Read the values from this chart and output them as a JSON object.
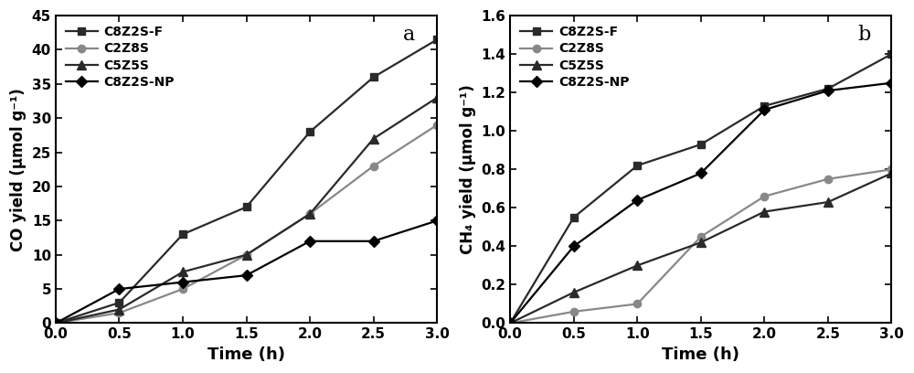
{
  "time": [
    0.0,
    0.5,
    1.0,
    1.5,
    2.0,
    2.5,
    3.0
  ],
  "plot_a": {
    "title": "a",
    "ylabel": "CO yield (μmol g⁻¹)",
    "xlabel": "Time (h)",
    "xlim": [
      0.0,
      3.0
    ],
    "ylim": [
      0,
      45
    ],
    "yticks": [
      0,
      5,
      10,
      15,
      20,
      25,
      30,
      35,
      40,
      45
    ],
    "xticks": [
      0.0,
      0.5,
      1.0,
      1.5,
      2.0,
      2.5,
      3.0
    ],
    "series": {
      "C8Z2S-F": [
        0,
        3.0,
        13.0,
        17.0,
        28.0,
        36.0,
        41.5
      ],
      "C2Z8S": [
        0,
        1.5,
        5.0,
        10.0,
        16.0,
        23.0,
        29.0
      ],
      "C5Z5S": [
        0,
        2.0,
        7.5,
        10.0,
        16.0,
        27.0,
        33.0
      ],
      "C8Z2S-NP": [
        0,
        5.0,
        6.0,
        7.0,
        12.0,
        12.0,
        15.0
      ]
    }
  },
  "plot_b": {
    "title": "b",
    "ylabel": "CH₄ yield (μmol g⁻¹)",
    "xlabel": "Time (h)",
    "xlim": [
      0.0,
      3.0
    ],
    "ylim": [
      0.0,
      1.6
    ],
    "yticks": [
      0.0,
      0.2,
      0.4,
      0.6,
      0.8,
      1.0,
      1.2,
      1.4,
      1.6
    ],
    "xticks": [
      0.0,
      0.5,
      1.0,
      1.5,
      2.0,
      2.5,
      3.0
    ],
    "series": {
      "C8Z2S-F": [
        0,
        0.55,
        0.82,
        0.93,
        1.13,
        1.22,
        1.4
      ],
      "C2Z8S": [
        0,
        0.06,
        0.1,
        0.45,
        0.66,
        0.75,
        0.8
      ],
      "C5Z5S": [
        0,
        0.16,
        0.3,
        0.42,
        0.58,
        0.63,
        0.78
      ],
      "C8Z2S-NP": [
        0,
        0.4,
        0.64,
        0.78,
        1.11,
        1.21,
        1.25
      ]
    }
  },
  "series_styles": {
    "C8Z2S-F": {
      "color": "#2a2a2a",
      "marker": "s",
      "markersize": 6
    },
    "C2Z8S": {
      "color": "#888888",
      "marker": "o",
      "markersize": 6
    },
    "C5Z5S": {
      "color": "#2a2a2a",
      "marker": "^",
      "markersize": 7
    },
    "C8Z2S-NP": {
      "color": "#000000",
      "marker": "D",
      "markersize": 6
    }
  },
  "linewidth": 1.6,
  "background_color": "#ffffff",
  "border_color": "#000000",
  "tick_labelsize": 11,
  "label_fontsize": 13,
  "legend_fontsize": 10,
  "panel_label_fontsize": 16
}
